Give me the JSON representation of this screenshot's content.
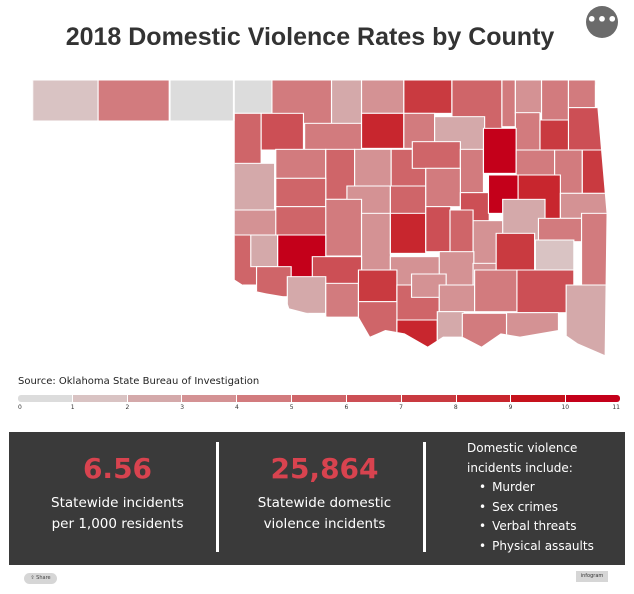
{
  "title": "2018 Domestic Violence Rates by County",
  "menu_label": "•••",
  "source": "Source: Oklahoma State Bureau of Investigation",
  "legend": {
    "ticks": [
      "0",
      "1",
      "2",
      "3",
      "4",
      "5",
      "6",
      "7",
      "8",
      "9",
      "10",
      "11"
    ],
    "colors": [
      "#dcdcdc",
      "#d9c3c3",
      "#d4a9aa",
      "#d49294",
      "#d27b7e",
      "#cf6569",
      "#cc4f55",
      "#c93a40",
      "#c8262e",
      "#c6121c",
      "#c4001a"
    ]
  },
  "map": {
    "region": "Oklahoma counties",
    "county_rate_bins": [
      1,
      4,
      0,
      0,
      4,
      2,
      3,
      7,
      5,
      4,
      3,
      4,
      4,
      5,
      6,
      4,
      8,
      4,
      2,
      4,
      7,
      6,
      2,
      4,
      5,
      3,
      5,
      5,
      4,
      10,
      4,
      4,
      7,
      5,
      3,
      5,
      4,
      6,
      10,
      8,
      3,
      3,
      5,
      4,
      3,
      8,
      6,
      5,
      3,
      2,
      4,
      4,
      5,
      2,
      10,
      6,
      3,
      3,
      3,
      7,
      1,
      6,
      5,
      2,
      4,
      7,
      5,
      3,
      3,
      4,
      2,
      5,
      8,
      2,
      4
    ]
  },
  "stats": [
    {
      "value": "6.56",
      "label_line1": "Statewide incidents",
      "label_line2": "per 1,000 residents"
    },
    {
      "value": "25,864",
      "label_line1": "Statewide domestic",
      "label_line2": "violence incidents"
    }
  ],
  "incidents_list": {
    "heading_line1": "Domestic violence",
    "heading_line2": "incidents include:",
    "items": [
      "Murder",
      "Sex crimes",
      "Verbal threats",
      "Physical assaults"
    ]
  },
  "footer": {
    "share_label": "Share",
    "brand": "infogram"
  },
  "accent_color": "#d8434f",
  "panel_color": "#3a3a3a"
}
